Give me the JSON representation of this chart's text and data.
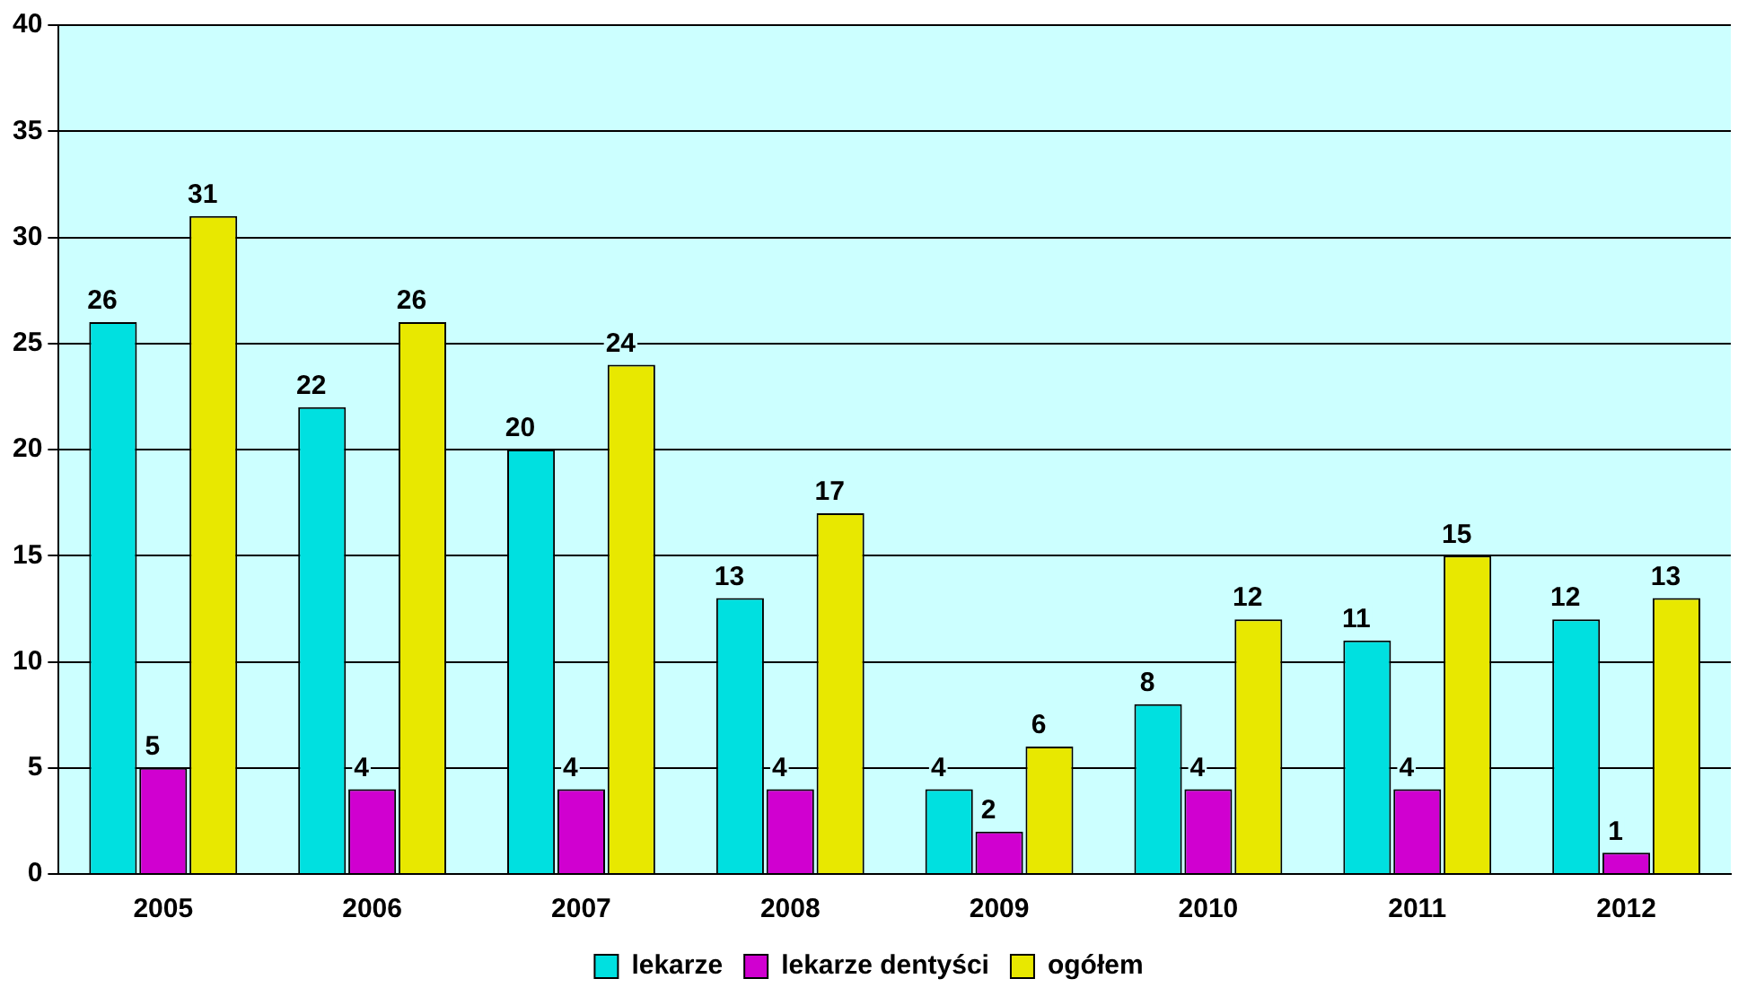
{
  "chart_data": {
    "type": "bar",
    "categories": [
      "2005",
      "2006",
      "2007",
      "2008",
      "2009",
      "2010",
      "2011",
      "2012"
    ],
    "series": [
      {
        "name": "lekarze",
        "color": "#00e0e0",
        "values": [
          26,
          22,
          20,
          13,
          4,
          8,
          11,
          12
        ]
      },
      {
        "name": "lekarze dentyści",
        "color": "#d000d0",
        "values": [
          5,
          4,
          4,
          4,
          2,
          4,
          4,
          1
        ]
      },
      {
        "name": "ogółem",
        "color": "#e8e800",
        "values": [
          31,
          26,
          24,
          17,
          6,
          12,
          15,
          13
        ]
      }
    ],
    "ylim": [
      0,
      40
    ],
    "yticks": [
      0,
      5,
      10,
      15,
      20,
      25,
      30,
      35,
      40
    ],
    "grid": "y",
    "legend": "bottom",
    "data_labels": true
  }
}
